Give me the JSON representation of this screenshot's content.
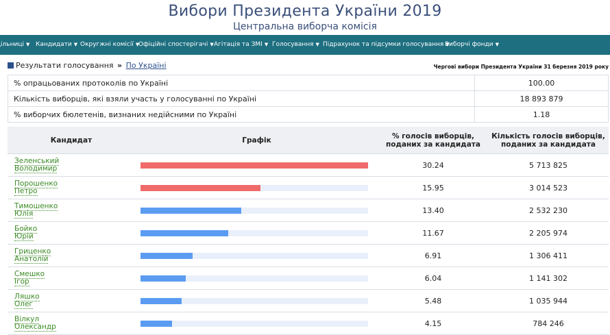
{
  "header": {
    "title": "Вибори Президента України 2019",
    "subtitle": "Центральна виборча комісія"
  },
  "nav": [
    "Дільниці",
    "Кандидати",
    "Округжні комісії",
    "Офіційні спостерігачі",
    "Агітація та ЗМІ",
    "Голосування",
    "Підрахунок та підсумки голосування",
    "Виборчі фонди"
  ],
  "breadcrumb": {
    "section": "Результати голосування",
    "separator": "»",
    "link": "По Україні"
  },
  "election_label": "Чергові вибори Президента України 31 березня 2019 року",
  "summary": [
    {
      "label": "% опрацьованих протоколів по Україні",
      "value": "100.00"
    },
    {
      "label": "Кількість виборців, які взяли участь у голосуванні по Україні",
      "value": "18 893 879"
    },
    {
      "label": "% виборчих бюлетенів, визнаних недійсними по Україні",
      "value": "1.18"
    }
  ],
  "table": {
    "headers": {
      "candidate": "Кандидат",
      "graph": "Графік",
      "pct": "% голосів виборців, поданих за кандидата",
      "votes": "Кількість голосів виборців, поданих за кандидата"
    },
    "rows": [
      {
        "surname": "Зеленський",
        "given": "Володимир",
        "pct": "30.24",
        "share": 30.24,
        "votes": "5 713 825",
        "color": "#f06a6a"
      },
      {
        "surname": "Порошенко",
        "given": "Петро",
        "pct": "15.95",
        "share": 15.95,
        "votes": "3 014 523",
        "color": "#f06a6a"
      },
      {
        "surname": "Тимошенко",
        "given": "Юлія",
        "pct": "13.40",
        "share": 13.4,
        "votes": "2 532 230",
        "color": "#5b9cf2"
      },
      {
        "surname": "Бойко",
        "given": "Юрій",
        "pct": "11.67",
        "share": 11.67,
        "votes": "2 205 974",
        "color": "#5b9cf2"
      },
      {
        "surname": "Гриценко",
        "given": "Анатолій",
        "pct": "6.91",
        "share": 6.91,
        "votes": "1 306 411",
        "color": "#5b9cf2"
      },
      {
        "surname": "Смешко",
        "given": "Ігор",
        "pct": "6.04",
        "share": 6.04,
        "votes": "1 141 302",
        "color": "#5b9cf2"
      },
      {
        "surname": "Ляшко",
        "given": "Олег",
        "pct": "5.48",
        "share": 5.48,
        "votes": "1 035 944",
        "color": "#5b9cf2"
      },
      {
        "surname": "Вілкул",
        "given": "Олександр",
        "pct": "4.15",
        "share": 4.15,
        "votes": "784 246",
        "color": "#5b9cf2"
      }
    ]
  },
  "colors": {
    "navbar": "#1e6f80",
    "title": "#3a4f7a",
    "link": "#3a8a24",
    "bar_leading": "#f06a6a",
    "bar_other": "#5b9cf2",
    "bar_track": "#e9f0fb"
  }
}
